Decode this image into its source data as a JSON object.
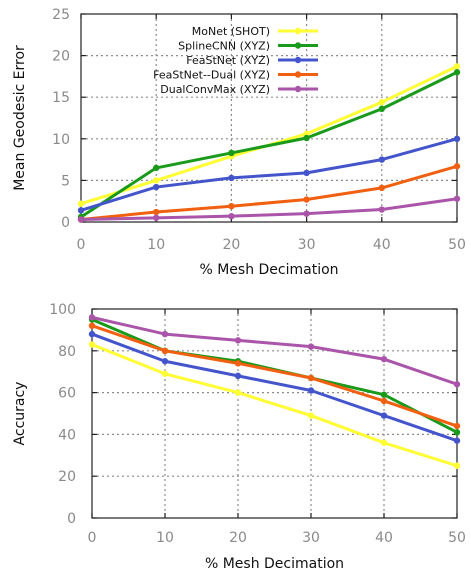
{
  "chart_data": [
    {
      "type": "line",
      "title": "",
      "xlabel": "% Mesh Decimation",
      "ylabel": "Mean Geodesic Error",
      "x": [
        0,
        10,
        20,
        30,
        40,
        50
      ],
      "xlim": [
        0,
        50
      ],
      "ylim": [
        0,
        25
      ],
      "xticks": [
        "0",
        "10",
        "20",
        "30",
        "40",
        "50"
      ],
      "yticks": [
        "0",
        "5",
        "10",
        "15",
        "20",
        "25"
      ],
      "grid": true,
      "legend_position": "top-left",
      "series": [
        {
          "name": "MoNet (SHOT)",
          "color": "#ffff33",
          "values": [
            2.2,
            5.0,
            7.9,
            10.6,
            14.4,
            18.7
          ]
        },
        {
          "name": "SplineCNN (XYZ)",
          "color": "#1a9a1a",
          "values": [
            0.6,
            6.5,
            8.3,
            10.1,
            13.6,
            18.0
          ]
        },
        {
          "name": "FeaStNet (XYZ)",
          "color": "#4455cc",
          "values": [
            1.4,
            4.2,
            5.3,
            5.9,
            7.5,
            10.0
          ]
        },
        {
          "name": "FeaStNet--Dual (XYZ)",
          "color": "#f06010",
          "values": [
            0.3,
            1.2,
            1.9,
            2.7,
            4.1,
            6.7
          ]
        },
        {
          "name": "DualConvMax (XYZ)",
          "color": "#aa55aa",
          "values": [
            0.3,
            0.5,
            0.7,
            1.0,
            1.5,
            2.8
          ]
        }
      ]
    },
    {
      "type": "line",
      "title": "",
      "xlabel": "% Mesh Decimation",
      "ylabel": "Accuracy",
      "x": [
        0,
        10,
        20,
        30,
        40,
        50
      ],
      "xlim": [
        0,
        50
      ],
      "ylim": [
        0,
        100
      ],
      "xticks": [
        "0",
        "10",
        "20",
        "30",
        "40",
        "50"
      ],
      "yticks": [
        "0",
        "20",
        "40",
        "60",
        "80",
        "100"
      ],
      "grid": true,
      "legend_position": "none",
      "series": [
        {
          "name": "MoNet (SHOT)",
          "color": "#ffff33",
          "values": [
            83,
            69,
            60,
            49,
            36,
            25
          ]
        },
        {
          "name": "SplineCNN (XYZ)",
          "color": "#1a9a1a",
          "values": [
            95,
            80,
            75,
            67,
            59,
            41
          ]
        },
        {
          "name": "FeaStNet (XYZ)",
          "color": "#4455cc",
          "values": [
            88,
            75,
            68,
            61,
            49,
            37
          ]
        },
        {
          "name": "FeaStNet--Dual (XYZ)",
          "color": "#f06010",
          "values": [
            92,
            80,
            74,
            67,
            56,
            44
          ]
        },
        {
          "name": "DualConvMax (XYZ)",
          "color": "#aa55aa",
          "values": [
            96,
            88,
            85,
            82,
            76,
            64
          ]
        }
      ]
    }
  ]
}
